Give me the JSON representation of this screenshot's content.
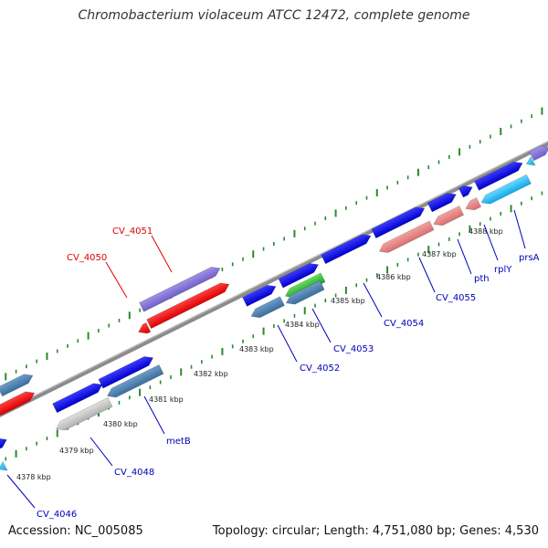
{
  "title": "Chromobacterium violaceum ATCC 12472, complete genome",
  "footer": {
    "accession": "Accession: NC_005085",
    "summary": "Topology: circular; Length: 4,751,080 bp; Genes: 4,530"
  },
  "colors": {
    "backbone": "#8c8c8c",
    "tick": "#2a8a2a",
    "red_label": "#dd0000",
    "blue_label": "#0000bb"
  },
  "ticks": [
    "4378 kbp",
    "4379 kbp",
    "4380 kbp",
    "4381 kbp",
    "4382 kbp",
    "4383 kbp",
    "4384 kbp",
    "4385 kbp",
    "4386 kbp",
    "4387 kbp",
    "4388 kbp"
  ],
  "gene_labels": {
    "CV_4051": "CV_4051",
    "CV_4050": "CV_4050",
    "CV_4055": "CV_4055",
    "pth": "pth",
    "rplY": "rplY",
    "prsA": "prsA",
    "CV_4054": "CV_4054",
    "CV_4053": "CV_4053",
    "CV_4052": "CV_4052",
    "metB": "metB",
    "CV_4048": "CV_4048",
    "CV_4046": "CV_4046"
  }
}
